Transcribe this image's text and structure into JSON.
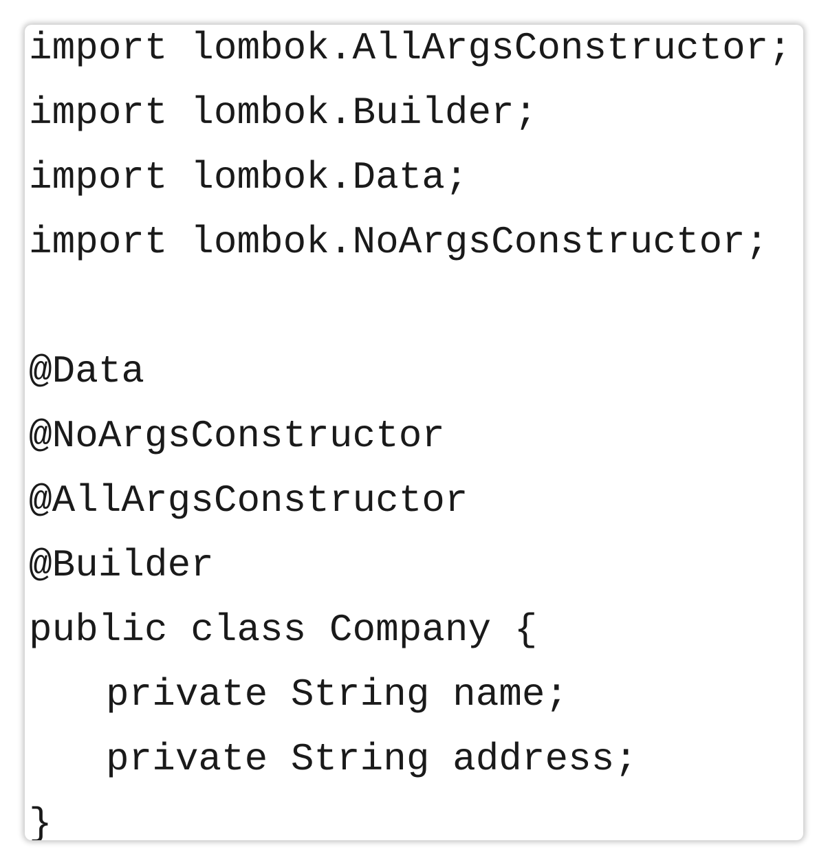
{
  "imports": [
    "import lombok.AllArgsConstructor;",
    "import lombok.Builder;",
    "import lombok.Data;",
    "import lombok.NoArgsConstructor;"
  ],
  "annotations": [
    "@Data",
    "@NoArgsConstructor",
    "@AllArgsConstructor",
    "@Builder"
  ],
  "class_declaration": "public class Company {",
  "fields": [
    "private String name;",
    "private String address;"
  ],
  "closing": "}"
}
